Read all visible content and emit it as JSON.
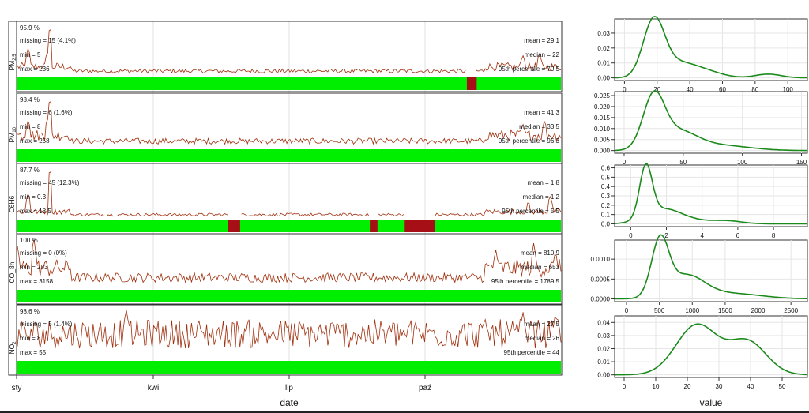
{
  "chart_data": [
    {
      "type": "line",
      "panel": "time-series",
      "xlabel": "date",
      "x_ticks": [
        "sty",
        "kwi",
        "lip",
        "paź"
      ],
      "valid_bar_colors": {
        "valid": "#00ee00",
        "missing": "#a50f15",
        "line": "#a0300e",
        "pct": "#1e7d1e"
      },
      "series": [
        {
          "name": "PM2.5",
          "name_main": "PM",
          "name_sub": "2.5",
          "pct": "95.9 %",
          "missing": "missing = 15 (4.1%)",
          "min": "min = 5",
          "max": "max = 236",
          "mean": "mean = 29.1",
          "median": "median = 22",
          "p95": "95th percentile = 70.5",
          "missing_ranges": [
            [
              0.826,
              0.844
            ]
          ],
          "ymax": 236,
          "level": 22,
          "spikes": [
            [
              0.06,
              236
            ],
            [
              0.055,
              110
            ],
            [
              0.02,
              130
            ],
            [
              0.93,
              95
            ],
            [
              0.96,
              105
            ]
          ]
        },
        {
          "name": "PM10",
          "name_main": "PM",
          "name_sub": "10",
          "pct": "98.4 %",
          "missing": "missing = 6 (1.6%)",
          "min": "min = 8",
          "max": "max = 258",
          "mean": "mean = 41.3",
          "median": "median = 33.5",
          "p95": "95th percentile = 96.3",
          "missing_ranges": [],
          "ymax": 258,
          "level": 33,
          "spikes": [
            [
              0.06,
              258
            ],
            [
              0.055,
              150
            ],
            [
              0.02,
              140
            ],
            [
              0.93,
              120
            ],
            [
              0.97,
              140
            ]
          ]
        },
        {
          "name": "C6H6",
          "name_main": "C6H6",
          "name_sub": "",
          "pct": "87.7 %",
          "missing": "missing = 45 (12.3%)",
          "min": "min = 0.3",
          "max": "max = 18.5",
          "mean": "mean = 1.8",
          "median": "median = 1.2",
          "p95": "95th percentile = 5.5",
          "missing_ranges": [
            [
              0.388,
              0.41
            ],
            [
              0.648,
              0.662
            ],
            [
              0.712,
              0.768
            ]
          ],
          "ymax": 18.5,
          "level": 1.2,
          "spikes": [
            [
              0.06,
              18.5
            ],
            [
              0.02,
              9
            ],
            [
              0.94,
              6
            ],
            [
              0.98,
              8
            ]
          ]
        },
        {
          "name": "CO_8h",
          "name_main": "CO_8h",
          "name_sub": "",
          "pct": "100 %",
          "missing": "missing = 0 (0%)",
          "min": "min = 233",
          "max": "max = 3158",
          "mean": "mean = 810.9",
          "median": "median = 653",
          "p95": "95th percentile = 1789.5",
          "missing_ranges": [],
          "ymax": 3158,
          "level": 653,
          "spikes": [
            [
              0.03,
              3158
            ],
            [
              0.0,
              2600
            ],
            [
              0.88,
              2400
            ],
            [
              0.95,
              2800
            ],
            [
              0.99,
              2300
            ]
          ]
        },
        {
          "name": "NO2",
          "name_main": "NO",
          "name_sub": "2",
          "pct": "98.6 %",
          "missing": "missing = 5 (1.4%)",
          "min": "min = 8",
          "max": "max = 55",
          "mean": "mean = 27.5",
          "median": "median = 26",
          "p95": "95th percentile = 44",
          "missing_ranges": [],
          "ymax": 55,
          "level": 26,
          "spikes": [
            [
              0.2,
              55
            ],
            [
              0.93,
              52
            ],
            [
              0.99,
              50
            ]
          ]
        }
      ]
    },
    {
      "type": "line",
      "panel": "density",
      "xlabel": "value",
      "series": [
        {
          "name": "PM2.5",
          "xlim": [
            -6,
            112
          ],
          "ylim": [
            -0.0018,
            0.0395
          ],
          "x_ticks": [
            0,
            20,
            40,
            60,
            80,
            100
          ],
          "y_ticks": [
            0.0,
            0.01,
            0.02,
            0.03
          ],
          "y_tick_labels": [
            "0.00",
            "0.01",
            "0.02",
            "0.03"
          ],
          "components": [
            [
              0.62,
              18,
              6.5
            ],
            [
              0.23,
              33,
              10
            ],
            [
              0.1,
              50,
              10
            ],
            [
              0.05,
              88,
              8
            ]
          ]
        },
        {
          "name": "PM10",
          "xlim": [
            -8,
            155
          ],
          "ylim": [
            -0.0012,
            0.0268
          ],
          "x_ticks": [
            0,
            50,
            100,
            150
          ],
          "y_ticks": [
            0.0,
            0.005,
            0.01,
            0.015,
            0.02,
            0.025
          ],
          "y_tick_labels": [
            "0.000",
            "0.005",
            "0.010",
            "0.015",
            "0.020",
            "0.025"
          ],
          "components": [
            [
              0.52,
              25,
              9
            ],
            [
              0.33,
              45,
              16
            ],
            [
              0.15,
              80,
              25
            ]
          ]
        },
        {
          "name": "C6H6",
          "xlim": [
            -0.9,
            9.9
          ],
          "ylim": [
            -0.03,
            0.63
          ],
          "x_ticks": [
            0,
            2,
            4,
            6,
            8
          ],
          "y_ticks": [
            0.0,
            0.1,
            0.2,
            0.3,
            0.4,
            0.5,
            0.6
          ],
          "y_tick_labels": [
            "0.0",
            "0.1",
            "0.2",
            "0.3",
            "0.4",
            "0.5",
            "0.6"
          ],
          "components": [
            [
              0.48,
              0.85,
              0.35
            ],
            [
              0.37,
              1.8,
              1.0
            ],
            [
              0.1,
              3.5,
              1.3
            ],
            [
              0.05,
              5.5,
              0.8
            ]
          ]
        },
        {
          "name": "CO_8h",
          "xlim": [
            -180,
            2750
          ],
          "ylim": [
            -7e-05,
            0.00148
          ],
          "x_ticks": [
            0,
            500,
            1000,
            1500,
            2000,
            2500
          ],
          "y_ticks": [
            0.0,
            0.0005,
            0.001
          ],
          "y_tick_labels": [
            "0.0000",
            "0.0005",
            "0.0010"
          ],
          "components": [
            [
              0.45,
              510,
              130
            ],
            [
              0.4,
              900,
              280
            ],
            [
              0.15,
              1600,
              450
            ]
          ]
        },
        {
          "name": "NO2",
          "xlim": [
            -3,
            58
          ],
          "ylim": [
            -0.002,
            0.045
          ],
          "x_ticks": [
            0,
            10,
            20,
            30,
            40,
            50
          ],
          "y_ticks": [
            0.0,
            0.01,
            0.02,
            0.03,
            0.04
          ],
          "y_tick_labels": [
            "0.00",
            "0.01",
            "0.02",
            "0.03",
            "0.04"
          ],
          "components": [
            [
              0.62,
              23,
              6.5
            ],
            [
              0.38,
              39,
              6
            ]
          ]
        }
      ]
    }
  ]
}
